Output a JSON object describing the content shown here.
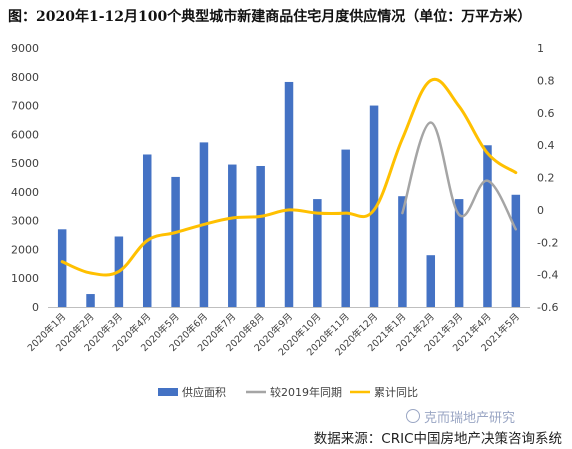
{
  "title": "图：2020年1-12月100个典型城市新建商品住宅月度供应情况（单位：万平方米）",
  "watermark": "克而瑞地产研究",
  "source": "数据来源：CRIC中国房地产决策咨询系统",
  "chart_data": {
    "type": "bar",
    "categories": [
      "2020年1月",
      "2020年2月",
      "2020年3月",
      "2020年4月",
      "2020年5月",
      "2020年6月",
      "2020年7月",
      "2020年8月",
      "2020年9月",
      "2020年10月",
      "2020年11月",
      "2020年12月",
      "2021年1月",
      "2021年2月",
      "2021年3月",
      "2021年4月",
      "2021年5月"
    ],
    "series": [
      {
        "name": "供应面积",
        "kind": "bar",
        "axis": "left",
        "color": "#4472C4",
        "values": [
          2700,
          450,
          2450,
          5300,
          4520,
          5720,
          4950,
          4900,
          7820,
          3750,
          5470,
          7000,
          3850,
          1800,
          3750,
          5620,
          3900
        ]
      },
      {
        "name": "较2019年同期",
        "kind": "line",
        "axis": "right",
        "color": "#A5A5A5",
        "values": [
          null,
          null,
          null,
          null,
          null,
          null,
          null,
          null,
          null,
          null,
          null,
          null,
          -0.02,
          0.54,
          -0.03,
          0.18,
          -0.12
        ]
      },
      {
        "name": "累计同比",
        "kind": "line",
        "axis": "right",
        "color": "#FFC000",
        "values": [
          -0.32,
          -0.39,
          -0.38,
          -0.19,
          -0.14,
          -0.09,
          -0.05,
          -0.04,
          0.0,
          -0.02,
          -0.02,
          0.0,
          0.44,
          0.8,
          0.64,
          0.35,
          0.23
        ]
      }
    ],
    "y_left": {
      "min": 0,
      "max": 9000,
      "step": 1000,
      "ticks": [
        "0",
        "1000",
        "2000",
        "3000",
        "4000",
        "5000",
        "6000",
        "7000",
        "8000",
        "9000"
      ]
    },
    "y_right": {
      "min": -0.6,
      "max": 1.0,
      "step": 0.2,
      "ticks": [
        "-0.6",
        "-0.4",
        "-0.2",
        "0",
        "0.2",
        "0.4",
        "0.6",
        "0.8",
        "1"
      ]
    },
    "grid": false,
    "legend_position": "bottom"
  }
}
